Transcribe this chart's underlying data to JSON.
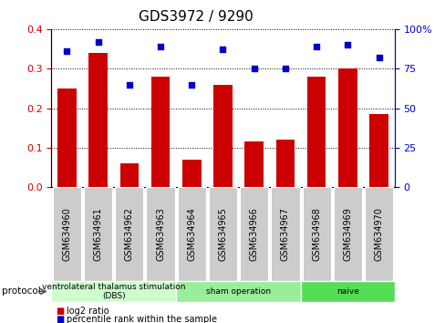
{
  "title": "GDS3972 / 9290",
  "samples": [
    "GSM634960",
    "GSM634961",
    "GSM634962",
    "GSM634963",
    "GSM634964",
    "GSM634965",
    "GSM634966",
    "GSM634967",
    "GSM634968",
    "GSM634969",
    "GSM634970"
  ],
  "log2_ratio": [
    0.25,
    0.34,
    0.06,
    0.28,
    0.07,
    0.26,
    0.115,
    0.12,
    0.28,
    0.3,
    0.185
  ],
  "percentile_rank": [
    86,
    92,
    65,
    89,
    65,
    87,
    75,
    75,
    89,
    90,
    82
  ],
  "bar_color": "#cc0000",
  "dot_color": "#0000cc",
  "ylim_left": [
    0,
    0.4
  ],
  "ylim_right": [
    0,
    100
  ],
  "yticks_left": [
    0,
    0.1,
    0.2,
    0.3,
    0.4
  ],
  "yticks_right": [
    0,
    25,
    50,
    75,
    100
  ],
  "ytick_labels_right": [
    "0",
    "25",
    "50",
    "75",
    "100%"
  ],
  "groups": [
    {
      "label": "ventrolateral thalamus stimulation\n(DBS)",
      "start": 0,
      "end": 4,
      "color": "#ccffcc"
    },
    {
      "label": "sham operation",
      "start": 4,
      "end": 8,
      "color": "#99ee99"
    },
    {
      "label": "naive",
      "start": 8,
      "end": 11,
      "color": "#55dd55"
    }
  ],
  "protocol_label": "protocol",
  "legend_log2": "log2 ratio",
  "legend_pct": "percentile rank within the sample",
  "title_fontsize": 11,
  "axis_label_color_left": "#cc0000",
  "axis_label_color_right": "#0000cc",
  "tick_label_bg": "#cccccc",
  "sample_label_fontsize": 7,
  "bar_width": 0.6
}
